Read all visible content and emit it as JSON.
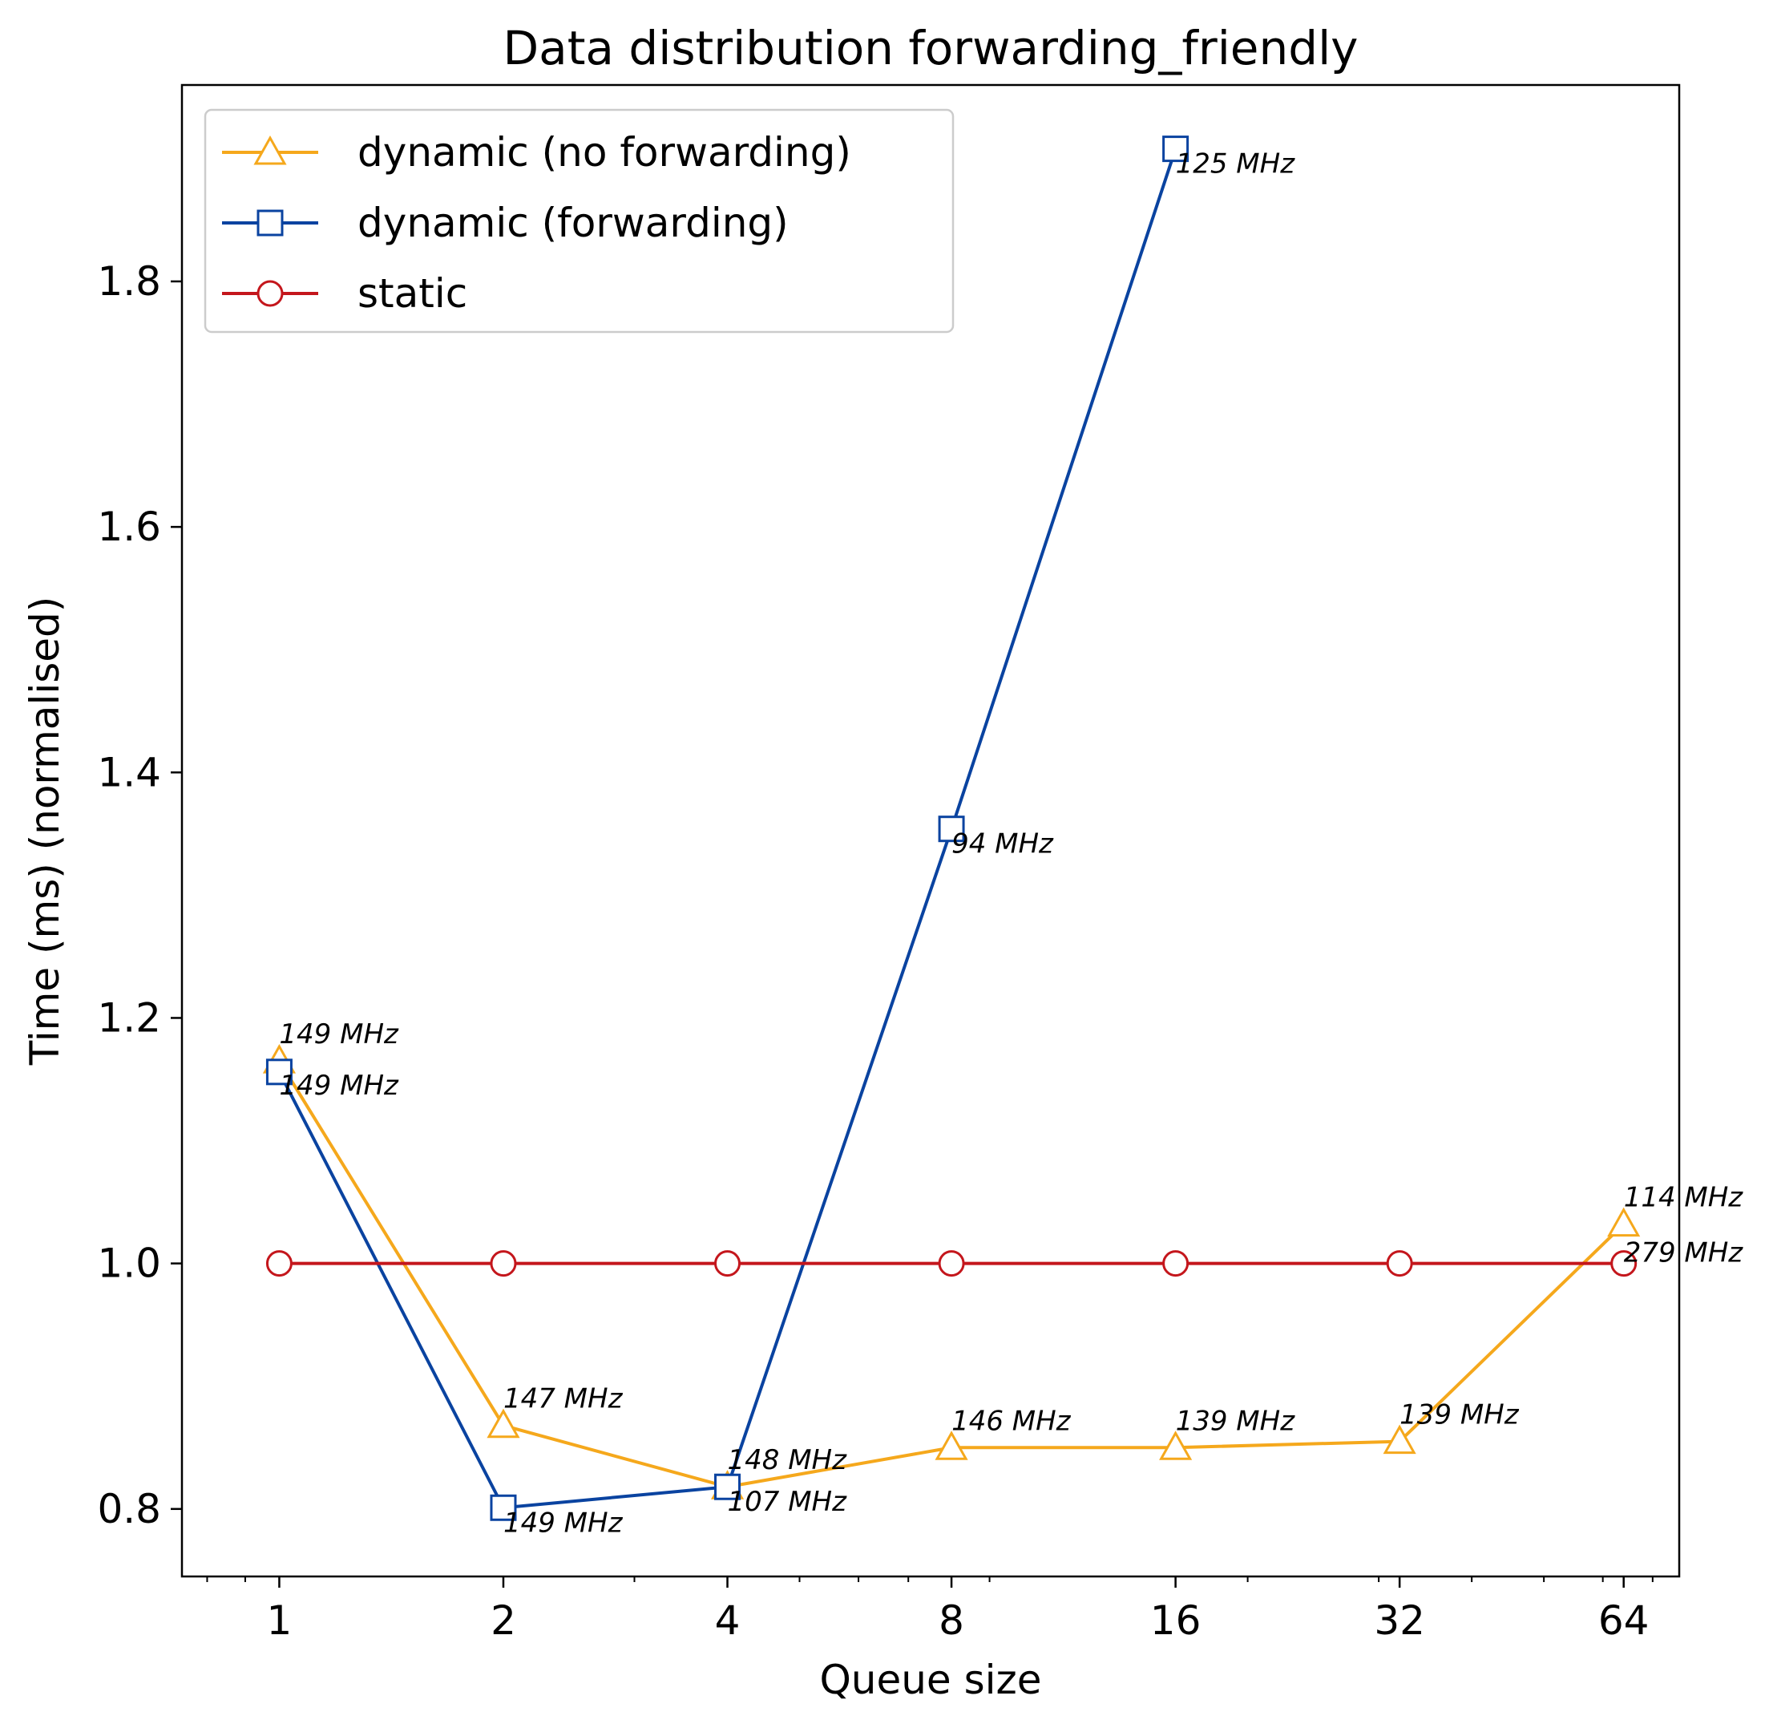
{
  "chart_data": {
    "type": "line",
    "title": "Data distribution forwarding_friendly",
    "xlabel": "Queue size",
    "ylabel": "Time (ms) (normalised)",
    "x_scale": "log2",
    "x": [
      1,
      2,
      4,
      8,
      16,
      32,
      64
    ],
    "x_tick_labels": [
      "1",
      "2",
      "4",
      "8",
      "16",
      "32",
      "64"
    ],
    "xlim": [
      0.74,
      76
    ],
    "ylim": [
      0.745,
      1.96
    ],
    "y_ticks": [
      0.8,
      1.0,
      1.2,
      1.4,
      1.6,
      1.8
    ],
    "y_tick_labels": [
      "0.8",
      "1.0",
      "1.2",
      "1.4",
      "1.6",
      "1.8"
    ],
    "grid": false,
    "legend_position": "top-left",
    "series": [
      {
        "name": "dynamic (no forwarding)",
        "color": "#f5a81c",
        "marker": "triangle",
        "x": [
          1,
          2,
          4,
          8,
          16,
          32,
          64
        ],
        "values": [
          1.165,
          0.868,
          0.818,
          0.85,
          0.85,
          0.855,
          1.032
        ],
        "labels": [
          "149 MHz",
          "147 MHz",
          "148 MHz",
          "146 MHz",
          "139 MHz",
          "139 MHz",
          "114 MHz"
        ]
      },
      {
        "name": "dynamic (forwarding)",
        "color": "#0a43a0",
        "marker": "square",
        "x": [
          1,
          2,
          4,
          8,
          16
        ],
        "values": [
          1.156,
          0.801,
          0.818,
          1.354,
          1.908
        ],
        "labels": [
          "149 MHz",
          "149 MHz",
          "107 MHz",
          "94 MHz",
          "125 MHz"
        ]
      },
      {
        "name": "static",
        "color": "#c4161c",
        "marker": "circle",
        "x": [
          1,
          2,
          4,
          8,
          16,
          32,
          64
        ],
        "values": [
          1.0,
          1.0,
          1.0,
          1.0,
          1.0,
          1.0,
          1.0
        ],
        "labels": [
          "",
          "",
          "",
          "",
          "",
          "",
          "279 MHz"
        ]
      }
    ]
  }
}
